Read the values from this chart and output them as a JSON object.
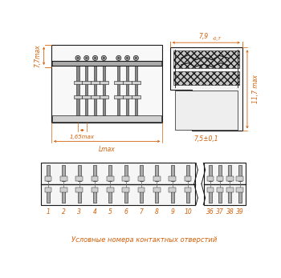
{
  "bg_color": "#ffffff",
  "line_color": "#1a1a1a",
  "dim_color": "#d4600a",
  "fig_width": 3.5,
  "fig_height": 3.47,
  "caption": "Условные номера контактных отверстий",
  "dim_79": "7,9",
  "dim_79_sub": "-0,7",
  "dim_77": "7,7max",
  "dim_117": "11,7 max",
  "dim_75": "7,5±0,1",
  "dim_165": "1,65max",
  "dim_lmax": "Lmax",
  "bottom_numbers_1": [
    "1",
    "2",
    "3",
    "4",
    "5",
    "6",
    "7",
    "8",
    "9",
    "10"
  ],
  "bottom_numbers_2": [
    "36",
    "37",
    "38",
    "39"
  ],
  "gray_light": "#d0d0d0",
  "gray_mid": "#aaaaaa",
  "gray_dark": "#666666",
  "gray_hatch": "#b0b0b0"
}
